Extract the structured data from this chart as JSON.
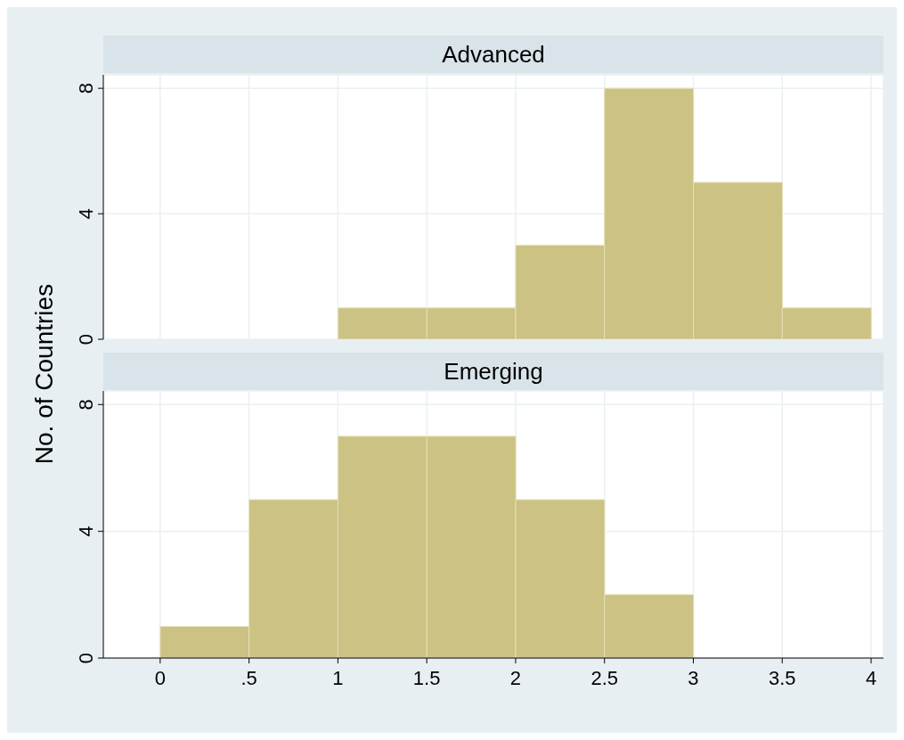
{
  "chart_data": [
    {
      "type": "histogram",
      "title": "Advanced",
      "ylabel": "No. of Countries",
      "bins": [
        0,
        0.5,
        1,
        1.5,
        2,
        2.5,
        3,
        3.5,
        4
      ],
      "values": [
        0,
        0,
        1,
        1,
        3,
        8,
        5,
        1
      ],
      "color": "#cbc283",
      "xlim": [
        -0.32,
        4.07
      ],
      "xticks": [
        0,
        0.5,
        1,
        1.5,
        2,
        2.5,
        3,
        3.5,
        4
      ],
      "ylim": [
        0,
        8.43
      ],
      "yticks": [
        0,
        4,
        8
      ],
      "grid": true,
      "tick_labels": "y"
    },
    {
      "type": "histogram",
      "title": "Emerging",
      "bins": [
        0,
        0.5,
        1,
        1.5,
        2,
        2.5,
        3,
        3.5,
        4
      ],
      "values": [
        1,
        5,
        7,
        7,
        5,
        2,
        0,
        0
      ],
      "color": "#cbc283",
      "xlim": [
        -0.32,
        4.07
      ],
      "xticks": [
        0,
        {
          "value": 0.5,
          "label": ".5"
        },
        1,
        1.5,
        2,
        2.5,
        3,
        3.5,
        4
      ],
      "ylim": [
        0,
        8.43
      ],
      "yticks": [
        0,
        4,
        8
      ],
      "grid": true
    }
  ]
}
